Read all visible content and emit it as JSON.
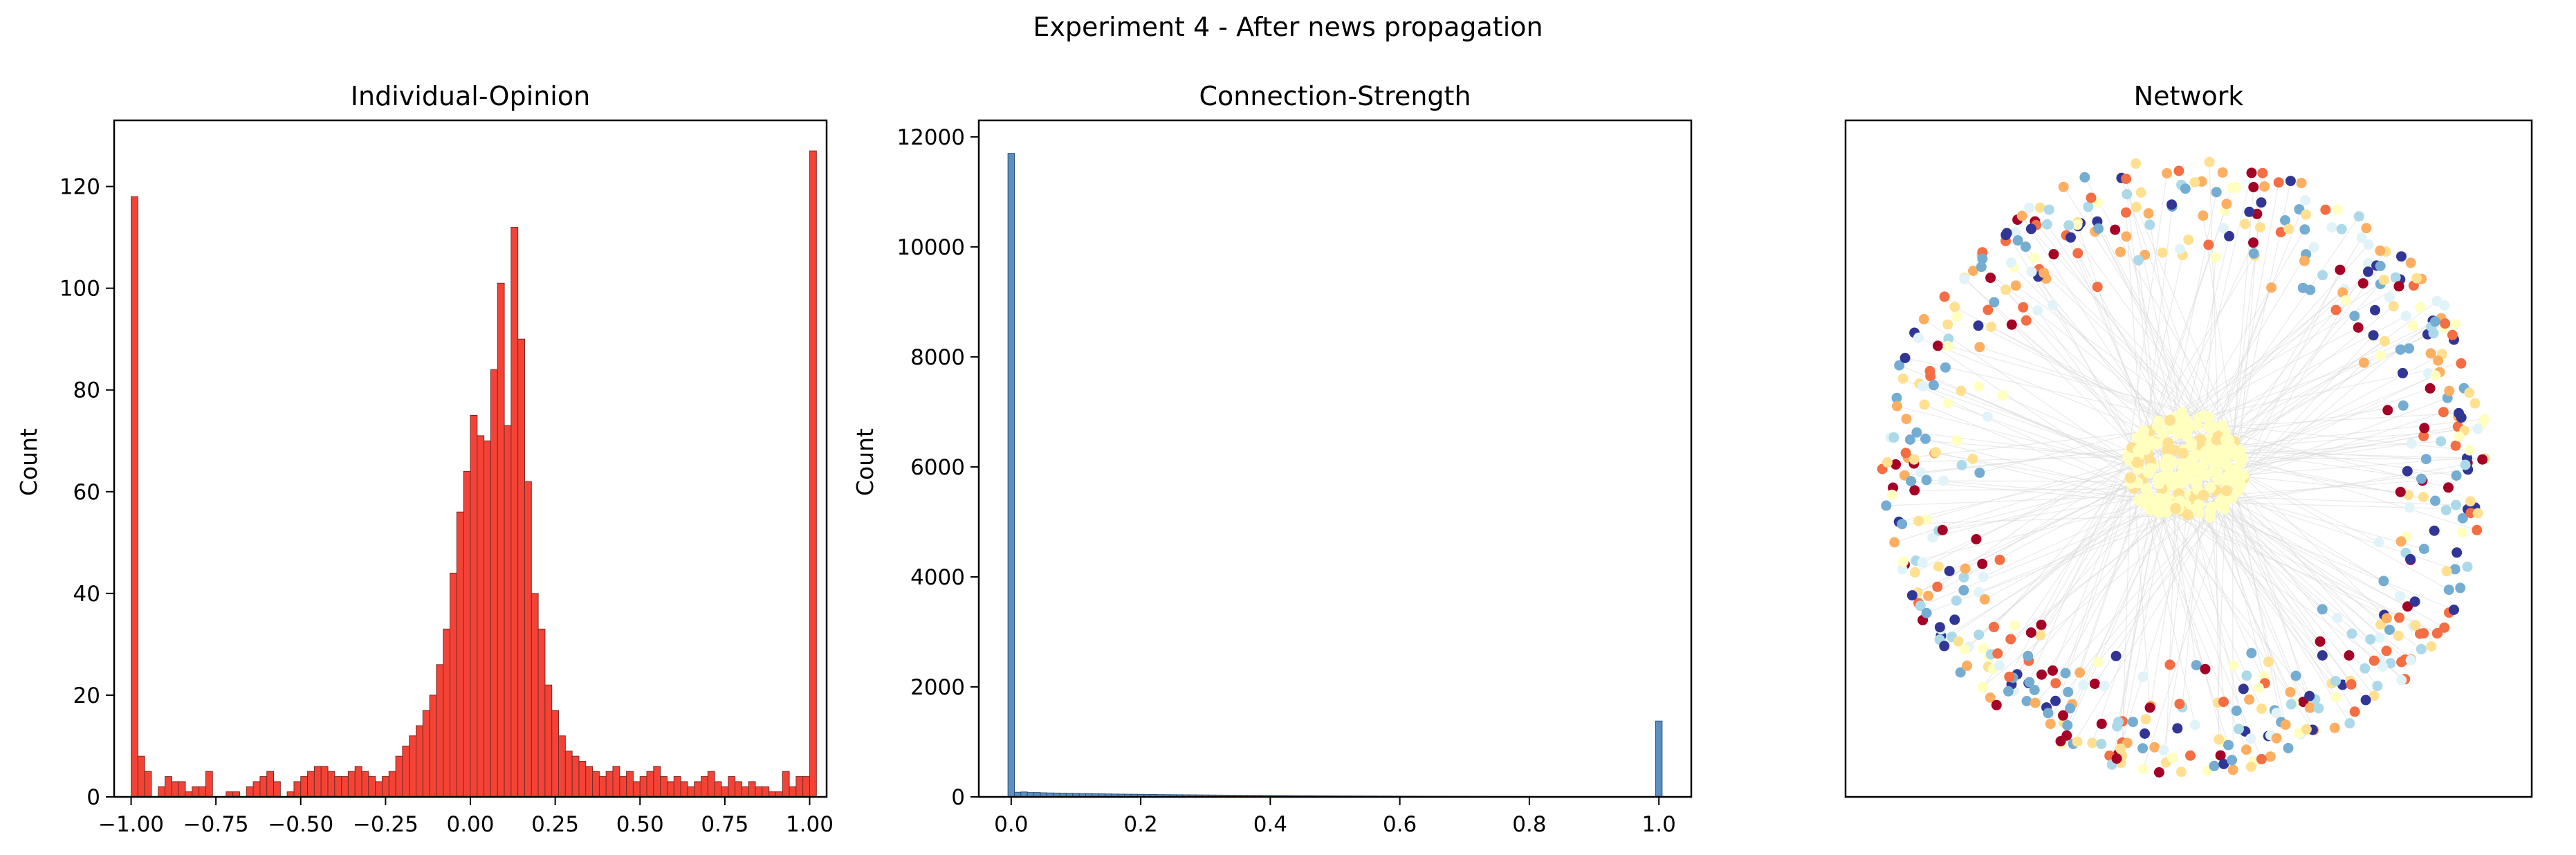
{
  "figure": {
    "suptitle": "Experiment 4 - After news propagation"
  },
  "chart_data": [
    {
      "type": "histogram",
      "title": "Individual-Opinion",
      "xlabel": "",
      "ylabel": "Count",
      "xlim": [
        -1.05,
        1.05
      ],
      "ylim": [
        0,
        133
      ],
      "xticks": [
        "−1.00",
        "−0.75",
        "−0.50",
        "−0.25",
        "0.00",
        "0.25",
        "0.50",
        "0.75",
        "1.00"
      ],
      "xtick_values": [
        -1.0,
        -0.75,
        -0.5,
        -0.25,
        0.0,
        0.25,
        0.5,
        0.75,
        1.0
      ],
      "yticks": [
        "0",
        "20",
        "40",
        "60",
        "80",
        "100",
        "120"
      ],
      "ytick_values": [
        0,
        20,
        40,
        60,
        80,
        100,
        120
      ],
      "bin_start": -1.0,
      "bin_width": 0.02,
      "bar_color": "#f44336",
      "edge_color": "#7a2a25",
      "counts": [
        118,
        8,
        5,
        0,
        2,
        4,
        3,
        3,
        1,
        2,
        2,
        5,
        0,
        0,
        1,
        1,
        0,
        2,
        3,
        4,
        5,
        3,
        0,
        1,
        3,
        4,
        5,
        6,
        6,
        5,
        4,
        4,
        5,
        6,
        5,
        4,
        3,
        4,
        5,
        8,
        10,
        12,
        14,
        17,
        20,
        26,
        33,
        44,
        56,
        64,
        75,
        71,
        70,
        84,
        101,
        73,
        112,
        90,
        62,
        40,
        33,
        22,
        17,
        12,
        9,
        8,
        7,
        6,
        5,
        4,
        5,
        6,
        4,
        5,
        3,
        4,
        5,
        6,
        4,
        3,
        4,
        3,
        2,
        3,
        4,
        5,
        3,
        2,
        4,
        3,
        2,
        3,
        2,
        2,
        1,
        1,
        5,
        2,
        4,
        4,
        127
      ]
    },
    {
      "type": "histogram",
      "title": "Connection-Strength",
      "xlabel": "",
      "ylabel": "Count",
      "xlim": [
        -0.05,
        1.05
      ],
      "ylim": [
        0,
        12300
      ],
      "xticks": [
        "0.0",
        "0.2",
        "0.4",
        "0.6",
        "0.8",
        "1.0"
      ],
      "xtick_values": [
        0.0,
        0.2,
        0.4,
        0.6,
        0.8,
        1.0
      ],
      "yticks": [
        "0",
        "2000",
        "4000",
        "6000",
        "8000",
        "10000",
        "12000"
      ],
      "ytick_values": [
        0,
        2000,
        4000,
        6000,
        8000,
        10000,
        12000
      ],
      "bin_start": -0.005,
      "bin_width": 0.01,
      "bar_color": "#5b8fc4",
      "edge_color": "#2c4f73",
      "counts": [
        11700,
        85,
        90,
        80,
        80,
        75,
        72,
        70,
        68,
        66,
        64,
        62,
        60,
        58,
        56,
        54,
        52,
        50,
        49,
        48,
        46,
        45,
        44,
        42,
        41,
        40,
        39,
        38,
        37,
        36,
        35,
        34,
        33,
        32,
        31,
        30,
        29,
        28,
        28,
        27,
        26,
        25,
        25,
        24,
        23,
        22,
        22,
        21,
        20,
        20,
        19,
        18,
        18,
        17,
        17,
        16,
        16,
        15,
        15,
        14,
        14,
        13,
        13,
        12,
        12,
        11,
        11,
        11,
        10,
        10,
        10,
        9,
        9,
        9,
        8,
        8,
        8,
        8,
        7,
        7,
        7,
        7,
        6,
        6,
        6,
        6,
        5,
        5,
        5,
        5,
        5,
        4,
        4,
        4,
        4,
        4,
        4,
        3,
        3,
        3,
        1380
      ]
    },
    {
      "type": "network",
      "title": "Network",
      "node_colors": [
        "#313695",
        "#a50026",
        "#f46d43",
        "#fdae61",
        "#fee090",
        "#ffffbf",
        "#e0f3f8",
        "#abd9e9",
        "#74add1"
      ],
      "edge_color": "#d8d8d8"
    }
  ]
}
